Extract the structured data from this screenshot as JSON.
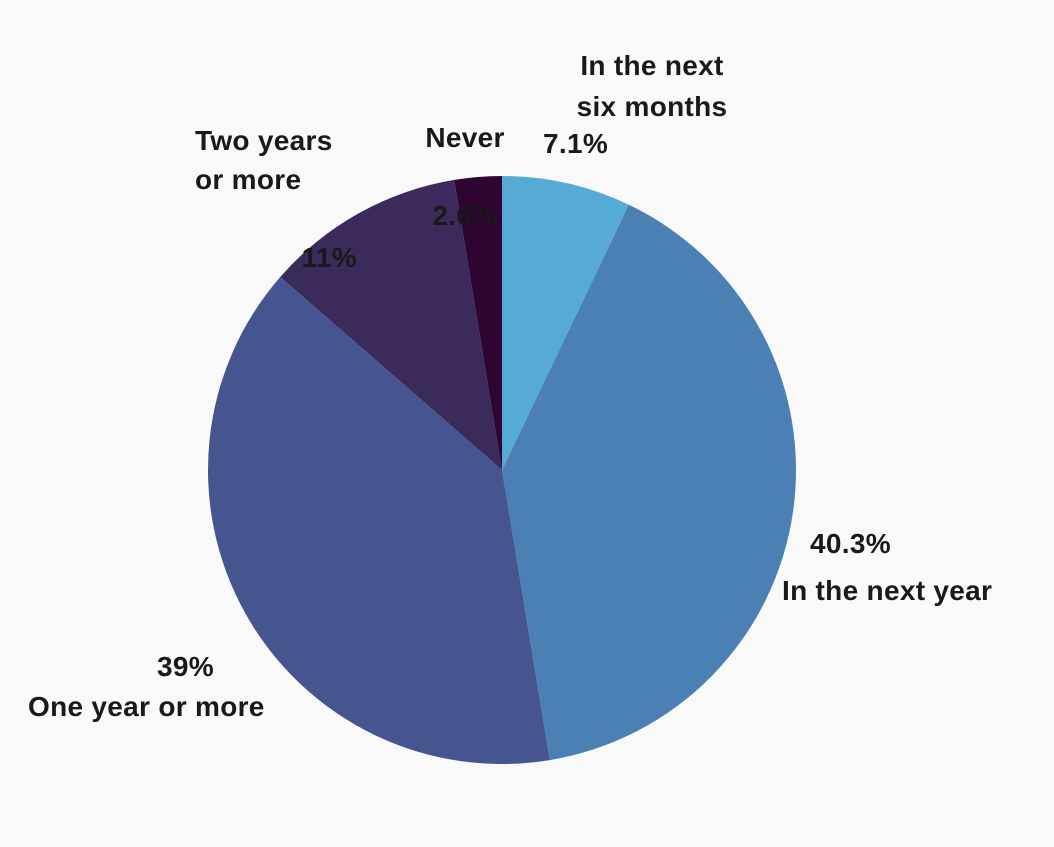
{
  "background_color": "#f9f9fa",
  "text_color": "#191919",
  "chart_data": {
    "type": "pie",
    "title": "",
    "legend": "none",
    "labels_position": "outside",
    "direction": "clockwise",
    "start_angle_deg": 0,
    "slices": [
      {
        "label": "In the next six months",
        "value": 7.1,
        "pct_label": "7.1%",
        "display_name": "In the next\nsix months",
        "color": "#56abd4"
      },
      {
        "label": "In the next year",
        "value": 40.3,
        "pct_label": "40.3%",
        "display_name": "In the next year",
        "color": "#4a80b4"
      },
      {
        "label": "One year or more",
        "value": 39,
        "pct_label": "39%",
        "display_name": "One year or more",
        "color": "#46548f"
      },
      {
        "label": "Two years or more",
        "value": 11,
        "pct_label": "11%",
        "display_name": "Two years\nor more",
        "color": "#3b2b5d"
      },
      {
        "label": "Never",
        "value": 2.6,
        "pct_label": "2.6%",
        "display_name": "Never",
        "color": "#2d0530"
      }
    ]
  }
}
